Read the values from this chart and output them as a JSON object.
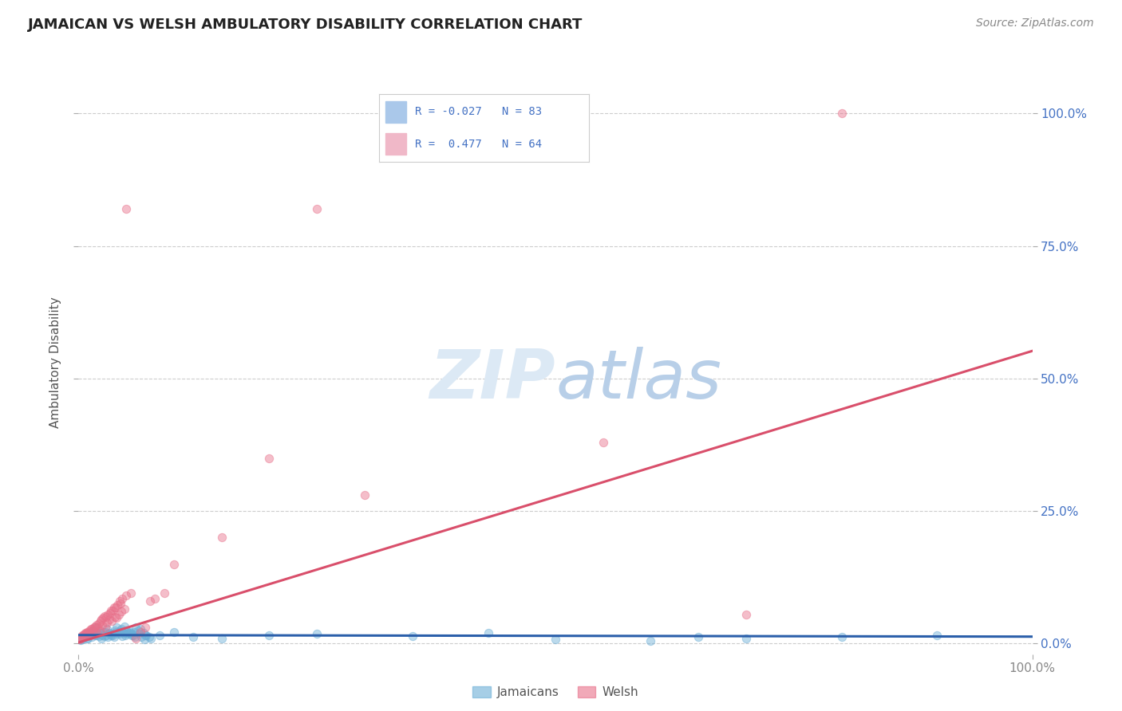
{
  "title": "JAMAICAN VS WELSH AMBULATORY DISABILITY CORRELATION CHART",
  "source": "Source: ZipAtlas.com",
  "ylabel": "Ambulatory Disability",
  "xlim": [
    0.0,
    1.0
  ],
  "ylim": [
    -0.02,
    1.08
  ],
  "ytick_vals": [
    0.0,
    0.25,
    0.5,
    0.75,
    1.0
  ],
  "ytick_labels": [
    "0.0%",
    "25.0%",
    "50.0%",
    "75.0%",
    "100.0%"
  ],
  "xtick_labels": [
    "0.0%",
    "100.0%"
  ],
  "jamaican_color": "#6baed6",
  "welsh_color": "#e8708a",
  "background_color": "#ffffff",
  "grid_color": "#c8c8c8",
  "right_ytick_color": "#4472c4",
  "watermark_color": "#dce9f5",
  "watermark_color2": "#b8cfe8",
  "jam_line_color": "#2b5faa",
  "welsh_line_color": "#d94f6b",
  "legend_R1": "R = -0.027",
  "legend_N1": "N = 83",
  "legend_R2": "R =  0.477",
  "legend_N2": "N = 64",
  "legend_color1": "#aac8ea",
  "legend_color2": "#f0b8c8",
  "jamaican_scatter": [
    [
      0.006,
      0.012
    ],
    [
      0.008,
      0.018
    ],
    [
      0.01,
      0.01
    ],
    [
      0.012,
      0.022
    ],
    [
      0.015,
      0.025
    ],
    [
      0.018,
      0.03
    ],
    [
      0.02,
      0.018
    ],
    [
      0.022,
      0.02
    ],
    [
      0.025,
      0.015
    ],
    [
      0.028,
      0.022
    ],
    [
      0.03,
      0.028
    ],
    [
      0.032,
      0.02
    ],
    [
      0.035,
      0.018
    ],
    [
      0.038,
      0.025
    ],
    [
      0.04,
      0.03
    ],
    [
      0.042,
      0.022
    ],
    [
      0.045,
      0.028
    ],
    [
      0.048,
      0.032
    ],
    [
      0.05,
      0.025
    ],
    [
      0.052,
      0.02
    ],
    [
      0.055,
      0.018
    ],
    [
      0.058,
      0.022
    ],
    [
      0.06,
      0.03
    ],
    [
      0.062,
      0.025
    ],
    [
      0.065,
      0.028
    ],
    [
      0.068,
      0.02
    ],
    [
      0.07,
      0.015
    ],
    [
      0.003,
      0.01
    ],
    [
      0.004,
      0.008
    ],
    [
      0.007,
      0.012
    ],
    [
      0.009,
      0.01
    ],
    [
      0.011,
      0.015
    ],
    [
      0.013,
      0.018
    ],
    [
      0.016,
      0.02
    ],
    [
      0.019,
      0.016
    ],
    [
      0.021,
      0.014
    ],
    [
      0.023,
      0.018
    ],
    [
      0.026,
      0.022
    ],
    [
      0.029,
      0.016
    ],
    [
      0.031,
      0.012
    ],
    [
      0.033,
      0.018
    ],
    [
      0.036,
      0.015
    ],
    [
      0.039,
      0.022
    ],
    [
      0.041,
      0.018
    ],
    [
      0.044,
      0.025
    ],
    [
      0.047,
      0.02
    ],
    [
      0.049,
      0.015
    ],
    [
      0.051,
      0.018
    ],
    [
      0.054,
      0.022
    ],
    [
      0.057,
      0.016
    ],
    [
      0.059,
      0.012
    ],
    [
      0.001,
      0.008
    ],
    [
      0.002,
      0.006
    ],
    [
      0.014,
      0.012
    ],
    [
      0.017,
      0.015
    ],
    [
      0.024,
      0.01
    ],
    [
      0.027,
      0.014
    ],
    [
      0.034,
      0.016
    ],
    [
      0.037,
      0.012
    ],
    [
      0.043,
      0.018
    ],
    [
      0.046,
      0.014
    ],
    [
      0.053,
      0.02
    ],
    [
      0.056,
      0.015
    ],
    [
      0.063,
      0.018
    ],
    [
      0.066,
      0.012
    ],
    [
      0.069,
      0.008
    ],
    [
      0.071,
      0.015
    ],
    [
      0.074,
      0.012
    ],
    [
      0.076,
      0.01
    ],
    [
      0.085,
      0.015
    ],
    [
      0.1,
      0.022
    ],
    [
      0.12,
      0.012
    ],
    [
      0.15,
      0.01
    ],
    [
      0.2,
      0.016
    ],
    [
      0.25,
      0.018
    ],
    [
      0.35,
      0.014
    ],
    [
      0.43,
      0.02
    ],
    [
      0.5,
      0.008
    ],
    [
      0.6,
      0.005
    ],
    [
      0.65,
      0.012
    ],
    [
      0.7,
      0.01
    ],
    [
      0.8,
      0.012
    ],
    [
      0.9,
      0.015
    ]
  ],
  "welsh_scatter": [
    [
      0.005,
      0.015
    ],
    [
      0.008,
      0.018
    ],
    [
      0.01,
      0.02
    ],
    [
      0.012,
      0.015
    ],
    [
      0.015,
      0.025
    ],
    [
      0.018,
      0.022
    ],
    [
      0.02,
      0.03
    ],
    [
      0.022,
      0.025
    ],
    [
      0.025,
      0.035
    ],
    [
      0.028,
      0.03
    ],
    [
      0.03,
      0.04
    ],
    [
      0.032,
      0.045
    ],
    [
      0.035,
      0.042
    ],
    [
      0.038,
      0.05
    ],
    [
      0.04,
      0.048
    ],
    [
      0.042,
      0.055
    ],
    [
      0.045,
      0.06
    ],
    [
      0.048,
      0.065
    ],
    [
      0.003,
      0.012
    ],
    [
      0.006,
      0.018
    ],
    [
      0.009,
      0.022
    ],
    [
      0.013,
      0.028
    ],
    [
      0.016,
      0.03
    ],
    [
      0.019,
      0.035
    ],
    [
      0.021,
      0.038
    ],
    [
      0.023,
      0.042
    ],
    [
      0.026,
      0.048
    ],
    [
      0.029,
      0.05
    ],
    [
      0.031,
      0.055
    ],
    [
      0.033,
      0.058
    ],
    [
      0.036,
      0.062
    ],
    [
      0.039,
      0.068
    ],
    [
      0.041,
      0.072
    ],
    [
      0.044,
      0.075
    ],
    [
      0.002,
      0.01
    ],
    [
      0.004,
      0.015
    ],
    [
      0.007,
      0.02
    ],
    [
      0.011,
      0.025
    ],
    [
      0.014,
      0.028
    ],
    [
      0.017,
      0.032
    ],
    [
      0.024,
      0.045
    ],
    [
      0.027,
      0.052
    ],
    [
      0.034,
      0.062
    ],
    [
      0.037,
      0.068
    ],
    [
      0.043,
      0.08
    ],
    [
      0.046,
      0.085
    ],
    [
      0.001,
      0.008
    ],
    [
      0.05,
      0.09
    ],
    [
      0.055,
      0.095
    ],
    [
      0.06,
      0.01
    ],
    [
      0.065,
      0.022
    ],
    [
      0.07,
      0.03
    ],
    [
      0.075,
      0.08
    ],
    [
      0.08,
      0.085
    ],
    [
      0.09,
      0.095
    ],
    [
      0.3,
      0.28
    ],
    [
      0.25,
      0.82
    ],
    [
      0.05,
      0.82
    ],
    [
      0.8,
      1.0
    ],
    [
      0.15,
      0.2
    ],
    [
      0.1,
      0.15
    ],
    [
      0.2,
      0.35
    ],
    [
      0.55,
      0.38
    ],
    [
      0.7,
      0.055
    ]
  ]
}
